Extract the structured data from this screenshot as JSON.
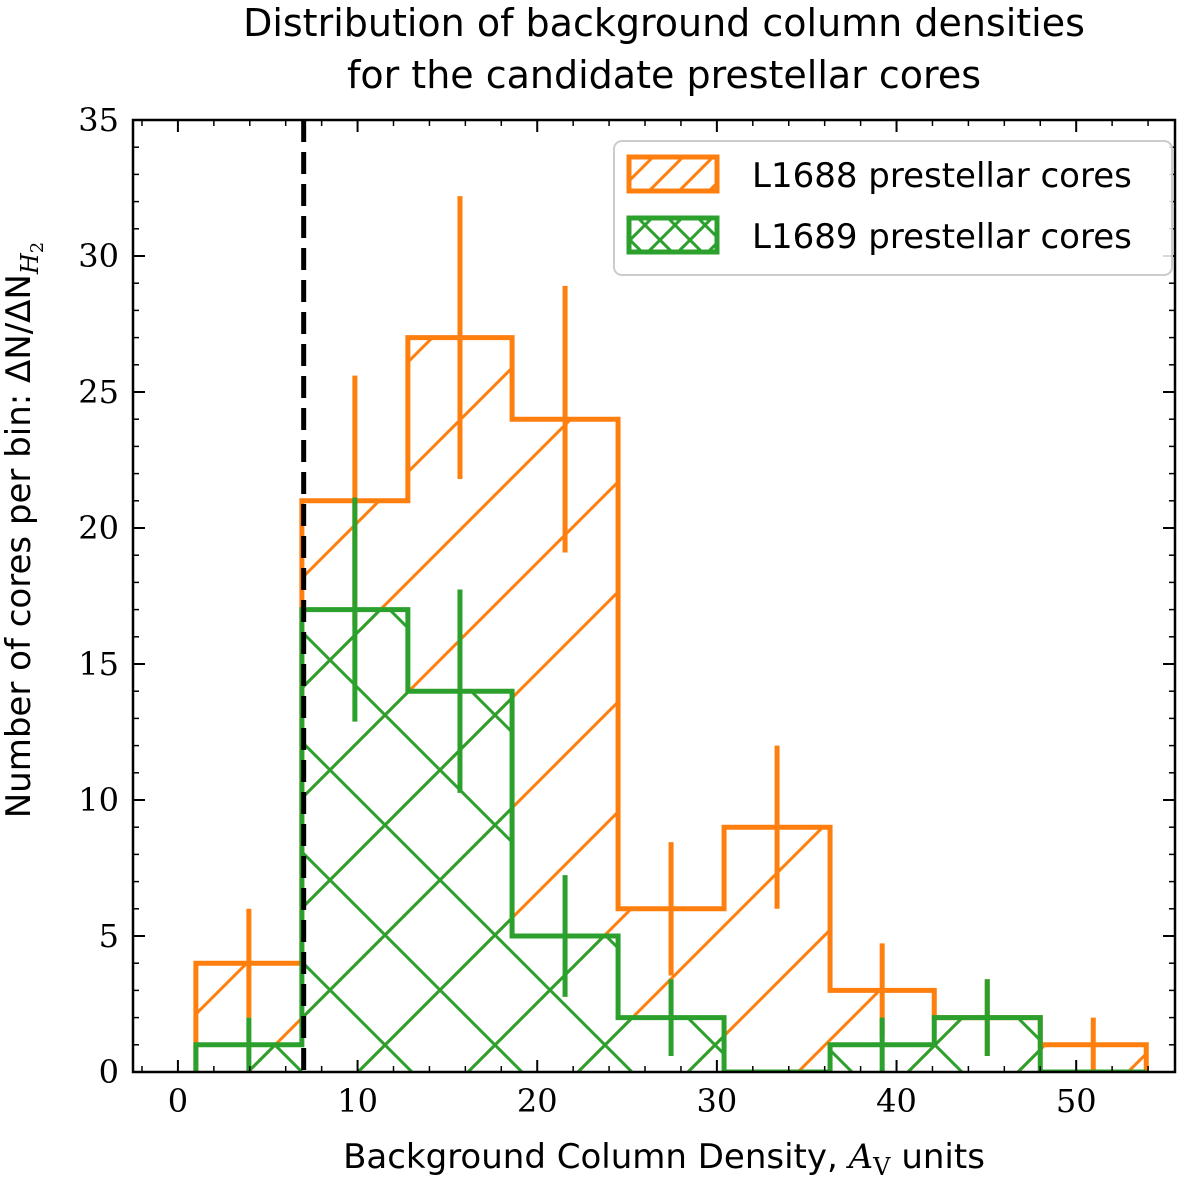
{
  "chart_data": {
    "type": "histogram",
    "title": [
      "Distribution of background column densities",
      "for the candidate prestellar cores"
    ],
    "xlabel": {
      "text": "Background Column Density, ",
      "math": "A",
      "sub": "V",
      "suffix": " units"
    },
    "ylabel": {
      "text": "Number of cores per bin: ΔN/ΔN",
      "sub": "H",
      "subsub": "2"
    },
    "xlim": [
      -2.5,
      55.5
    ],
    "ylim": [
      0,
      35
    ],
    "xticks": [
      0,
      10,
      20,
      30,
      40,
      50
    ],
    "yticks": [
      0,
      5,
      10,
      15,
      20,
      25,
      30,
      35
    ],
    "threshold_line": {
      "x": 7,
      "style": "dashed",
      "color": "#000000"
    },
    "bin_edges": [
      1.0,
      6.9,
      12.8,
      18.6,
      24.5,
      30.4,
      36.3,
      42.1,
      48.0,
      53.9
    ],
    "series": [
      {
        "name": "L1688 prestellar cores",
        "color": "#ff7f0e",
        "hatch": "diagonal",
        "values": [
          4,
          21,
          27,
          24,
          6,
          9,
          3,
          2,
          1
        ],
        "errors": [
          2,
          4.6,
          5.2,
          4.9,
          2.45,
          3,
          1.73,
          1.41,
          1
        ]
      },
      {
        "name": "L1689 prestellar cores",
        "color": "#2ca02c",
        "hatch": "cross",
        "values": [
          1,
          17,
          14,
          5,
          2,
          0,
          1,
          2,
          0
        ],
        "errors": [
          1,
          4.12,
          3.74,
          2.24,
          1.41,
          0,
          1,
          1.41,
          0
        ]
      }
    ],
    "legend": {
      "position": "top-right"
    }
  }
}
